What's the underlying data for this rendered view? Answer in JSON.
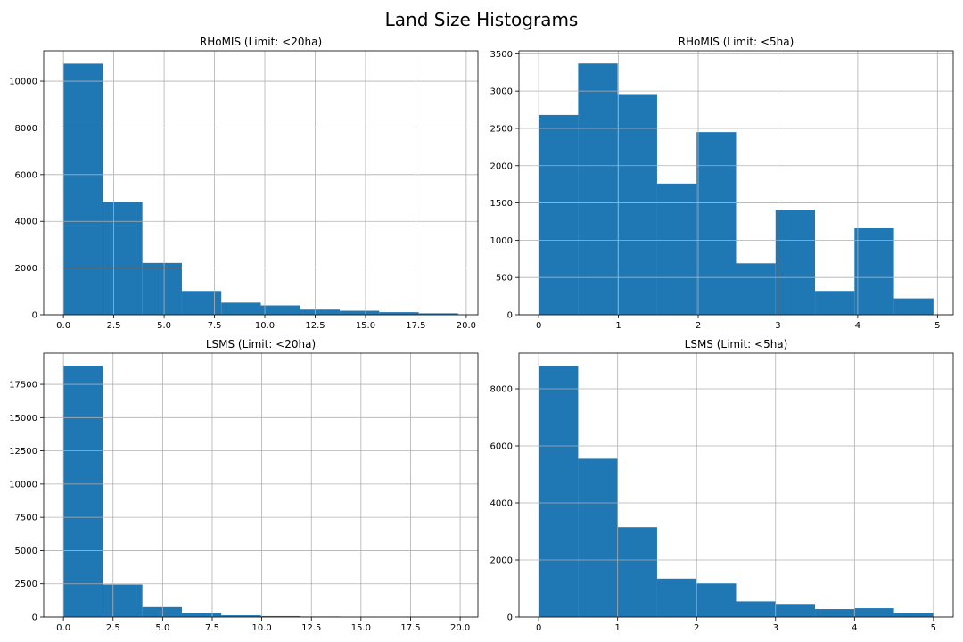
{
  "figure": {
    "title": "Land Size Histograms"
  },
  "colors": {
    "bar": "#1f77b4",
    "grid": "#b0b0b0"
  },
  "chart_data": [
    {
      "type": "bar",
      "title": "RHoMIS (Limit: <20ha)",
      "xlabel": "",
      "ylabel": "",
      "bin_edges": [
        0.0,
        1.96,
        3.92,
        5.88,
        7.84,
        9.8,
        11.76,
        13.72,
        15.68,
        17.64,
        19.6
      ],
      "values": [
        10750,
        4830,
        2220,
        1020,
        520,
        400,
        220,
        170,
        110,
        60
      ],
      "xlim": [
        -0.98,
        20.58
      ],
      "ylim": [
        0,
        11300
      ],
      "xticks": [
        0,
        2.5,
        5,
        7.5,
        10,
        12.5,
        15,
        17.5,
        20
      ],
      "xtick_labels": [
        "0.0",
        "2.5",
        "5.0",
        "7.5",
        "10.0",
        "12.5",
        "15.0",
        "17.5",
        "20.0"
      ],
      "yticks": [
        0,
        2000,
        4000,
        6000,
        8000,
        10000
      ],
      "ytick_labels": [
        "0",
        "2000",
        "4000",
        "6000",
        "8000",
        "10000"
      ],
      "grid": true
    },
    {
      "type": "bar",
      "title": "RHoMIS (Limit: <5ha)",
      "xlabel": "",
      "ylabel": "",
      "bin_edges": [
        0.0,
        0.495,
        0.99,
        1.485,
        1.98,
        2.475,
        2.97,
        3.465,
        3.96,
        4.455,
        4.95
      ],
      "values": [
        2680,
        3370,
        2960,
        1760,
        2450,
        690,
        1410,
        320,
        1160,
        220
      ],
      "xlim": [
        -0.2475,
        5.1975
      ],
      "ylim": [
        0,
        3540
      ],
      "xticks": [
        0,
        1,
        2,
        3,
        4,
        5
      ],
      "xtick_labels": [
        "0",
        "1",
        "2",
        "3",
        "4",
        "5"
      ],
      "yticks": [
        0,
        500,
        1000,
        1500,
        2000,
        2500,
        3000,
        3500
      ],
      "ytick_labels": [
        "0",
        "500",
        "1000",
        "1500",
        "2000",
        "2500",
        "3000",
        "3500"
      ],
      "grid": true
    },
    {
      "type": "bar",
      "title": "LSMS (Limit: <20ha)",
      "xlabel": "",
      "ylabel": "",
      "bin_edges": [
        0.0,
        1.99,
        3.98,
        5.97,
        7.96,
        9.95,
        11.94,
        13.93,
        15.92,
        17.91,
        19.9
      ],
      "values": [
        18900,
        2450,
        750,
        330,
        130,
        70,
        40,
        5,
        3,
        2
      ],
      "xlim": [
        -0.995,
        20.895
      ],
      "ylim": [
        0,
        19850
      ],
      "xticks": [
        0,
        2.5,
        5,
        7.5,
        10,
        12.5,
        15,
        17.5,
        20
      ],
      "xtick_labels": [
        "0.0",
        "2.5",
        "5.0",
        "7.5",
        "10.0",
        "12.5",
        "15.0",
        "17.5",
        "20.0"
      ],
      "yticks": [
        0,
        2500,
        5000,
        7500,
        10000,
        12500,
        15000,
        17500
      ],
      "ytick_labels": [
        "0",
        "2500",
        "5000",
        "7500",
        "10000",
        "12500",
        "15000",
        "17500"
      ],
      "grid": true
    },
    {
      "type": "bar",
      "title": "LSMS (Limit: <5ha)",
      "xlabel": "",
      "ylabel": "",
      "bin_edges": [
        0.0,
        0.5,
        1.0,
        1.5,
        2.0,
        2.5,
        3.0,
        3.5,
        4.0,
        4.5,
        5.0
      ],
      "values": [
        8800,
        5550,
        3150,
        1350,
        1180,
        550,
        460,
        280,
        310,
        150
      ],
      "xlim": [
        -0.25,
        5.25
      ],
      "ylim": [
        0,
        9250
      ],
      "xticks": [
        0,
        1,
        2,
        3,
        4,
        5
      ],
      "xtick_labels": [
        "0",
        "1",
        "2",
        "3",
        "4",
        "5"
      ],
      "yticks": [
        0,
        2000,
        4000,
        6000,
        8000
      ],
      "ytick_labels": [
        "0",
        "2000",
        "4000",
        "6000",
        "8000"
      ],
      "grid": true
    }
  ]
}
